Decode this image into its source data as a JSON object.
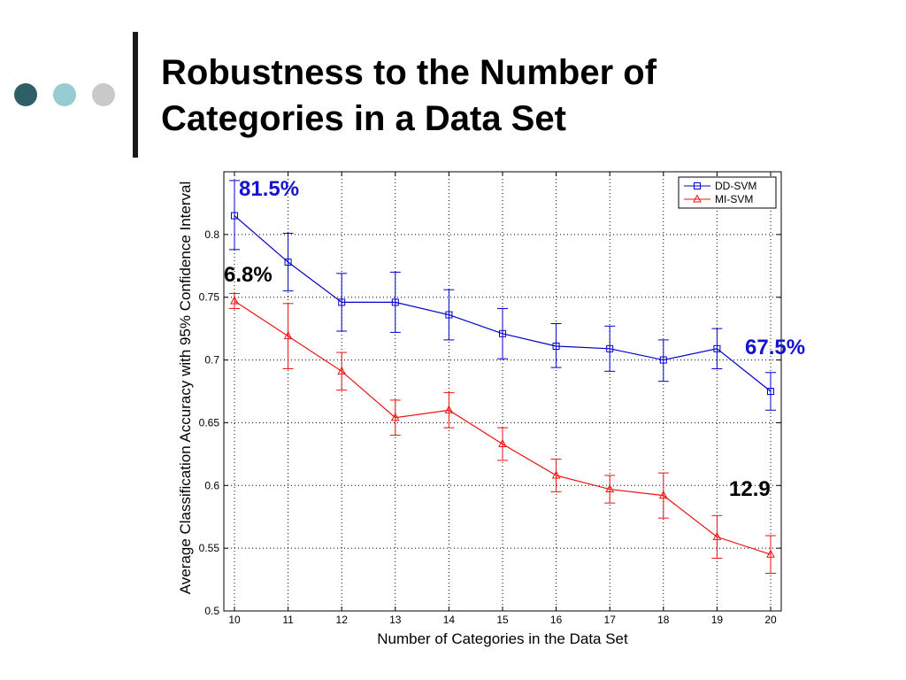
{
  "slide": {
    "title_line1": "Robustness to the Number of",
    "title_line2": "Categories in a Data Set",
    "colors": {
      "dot1": "#2f5f66",
      "dot2": "#96ccd0",
      "dot3": "#c9c9c9",
      "bar": "#1a1a1a"
    }
  },
  "chart_data": {
    "type": "line",
    "xlabel": "Number of Categories in the Data Set",
    "ylabel": "Average Classification Accuracy with 95% Confidence Interval",
    "x": [
      10,
      11,
      12,
      13,
      14,
      15,
      16,
      17,
      18,
      19,
      20
    ],
    "xlim": [
      10,
      20
    ],
    "ylim": [
      0.5,
      0.85
    ],
    "xticks": [
      "10",
      "11",
      "12",
      "13",
      "14",
      "15",
      "16",
      "17",
      "18",
      "19",
      "20"
    ],
    "yticks": [
      "0.5",
      "0.55",
      "0.6",
      "0.65",
      "0.7",
      "0.75",
      "0.8"
    ],
    "grid": true,
    "legend_position": "top-right",
    "series": [
      {
        "name": "DD-SVM",
        "color": "#0000cc",
        "marker": "square",
        "values": [
          0.815,
          0.778,
          0.746,
          0.746,
          0.736,
          0.721,
          0.711,
          0.709,
          0.7,
          0.709,
          0.675
        ],
        "lower": [
          0.788,
          0.755,
          0.723,
          0.722,
          0.716,
          0.701,
          0.694,
          0.691,
          0.683,
          0.693,
          0.66
        ],
        "upper": [
          0.843,
          0.801,
          0.769,
          0.77,
          0.756,
          0.741,
          0.729,
          0.727,
          0.716,
          0.725,
          0.69
        ]
      },
      {
        "name": "MI-SVM",
        "color": "#ee1111",
        "marker": "triangle",
        "values": [
          0.747,
          0.719,
          0.691,
          0.654,
          0.66,
          0.633,
          0.608,
          0.597,
          0.592,
          0.559,
          0.545
        ],
        "lower": [
          0.741,
          0.693,
          0.676,
          0.64,
          0.646,
          0.62,
          0.595,
          0.586,
          0.574,
          0.542,
          0.53
        ],
        "upper": [
          0.753,
          0.745,
          0.706,
          0.668,
          0.674,
          0.646,
          0.621,
          0.608,
          0.61,
          0.576,
          0.56
        ]
      }
    ],
    "annotations": [
      {
        "text": "81.5%",
        "color": "#1414d0"
      },
      {
        "text": "6.8%",
        "color": "#000000"
      },
      {
        "text": "67.5%",
        "color": "#1414d0"
      },
      {
        "text": "12.9",
        "color": "#000000"
      }
    ]
  }
}
